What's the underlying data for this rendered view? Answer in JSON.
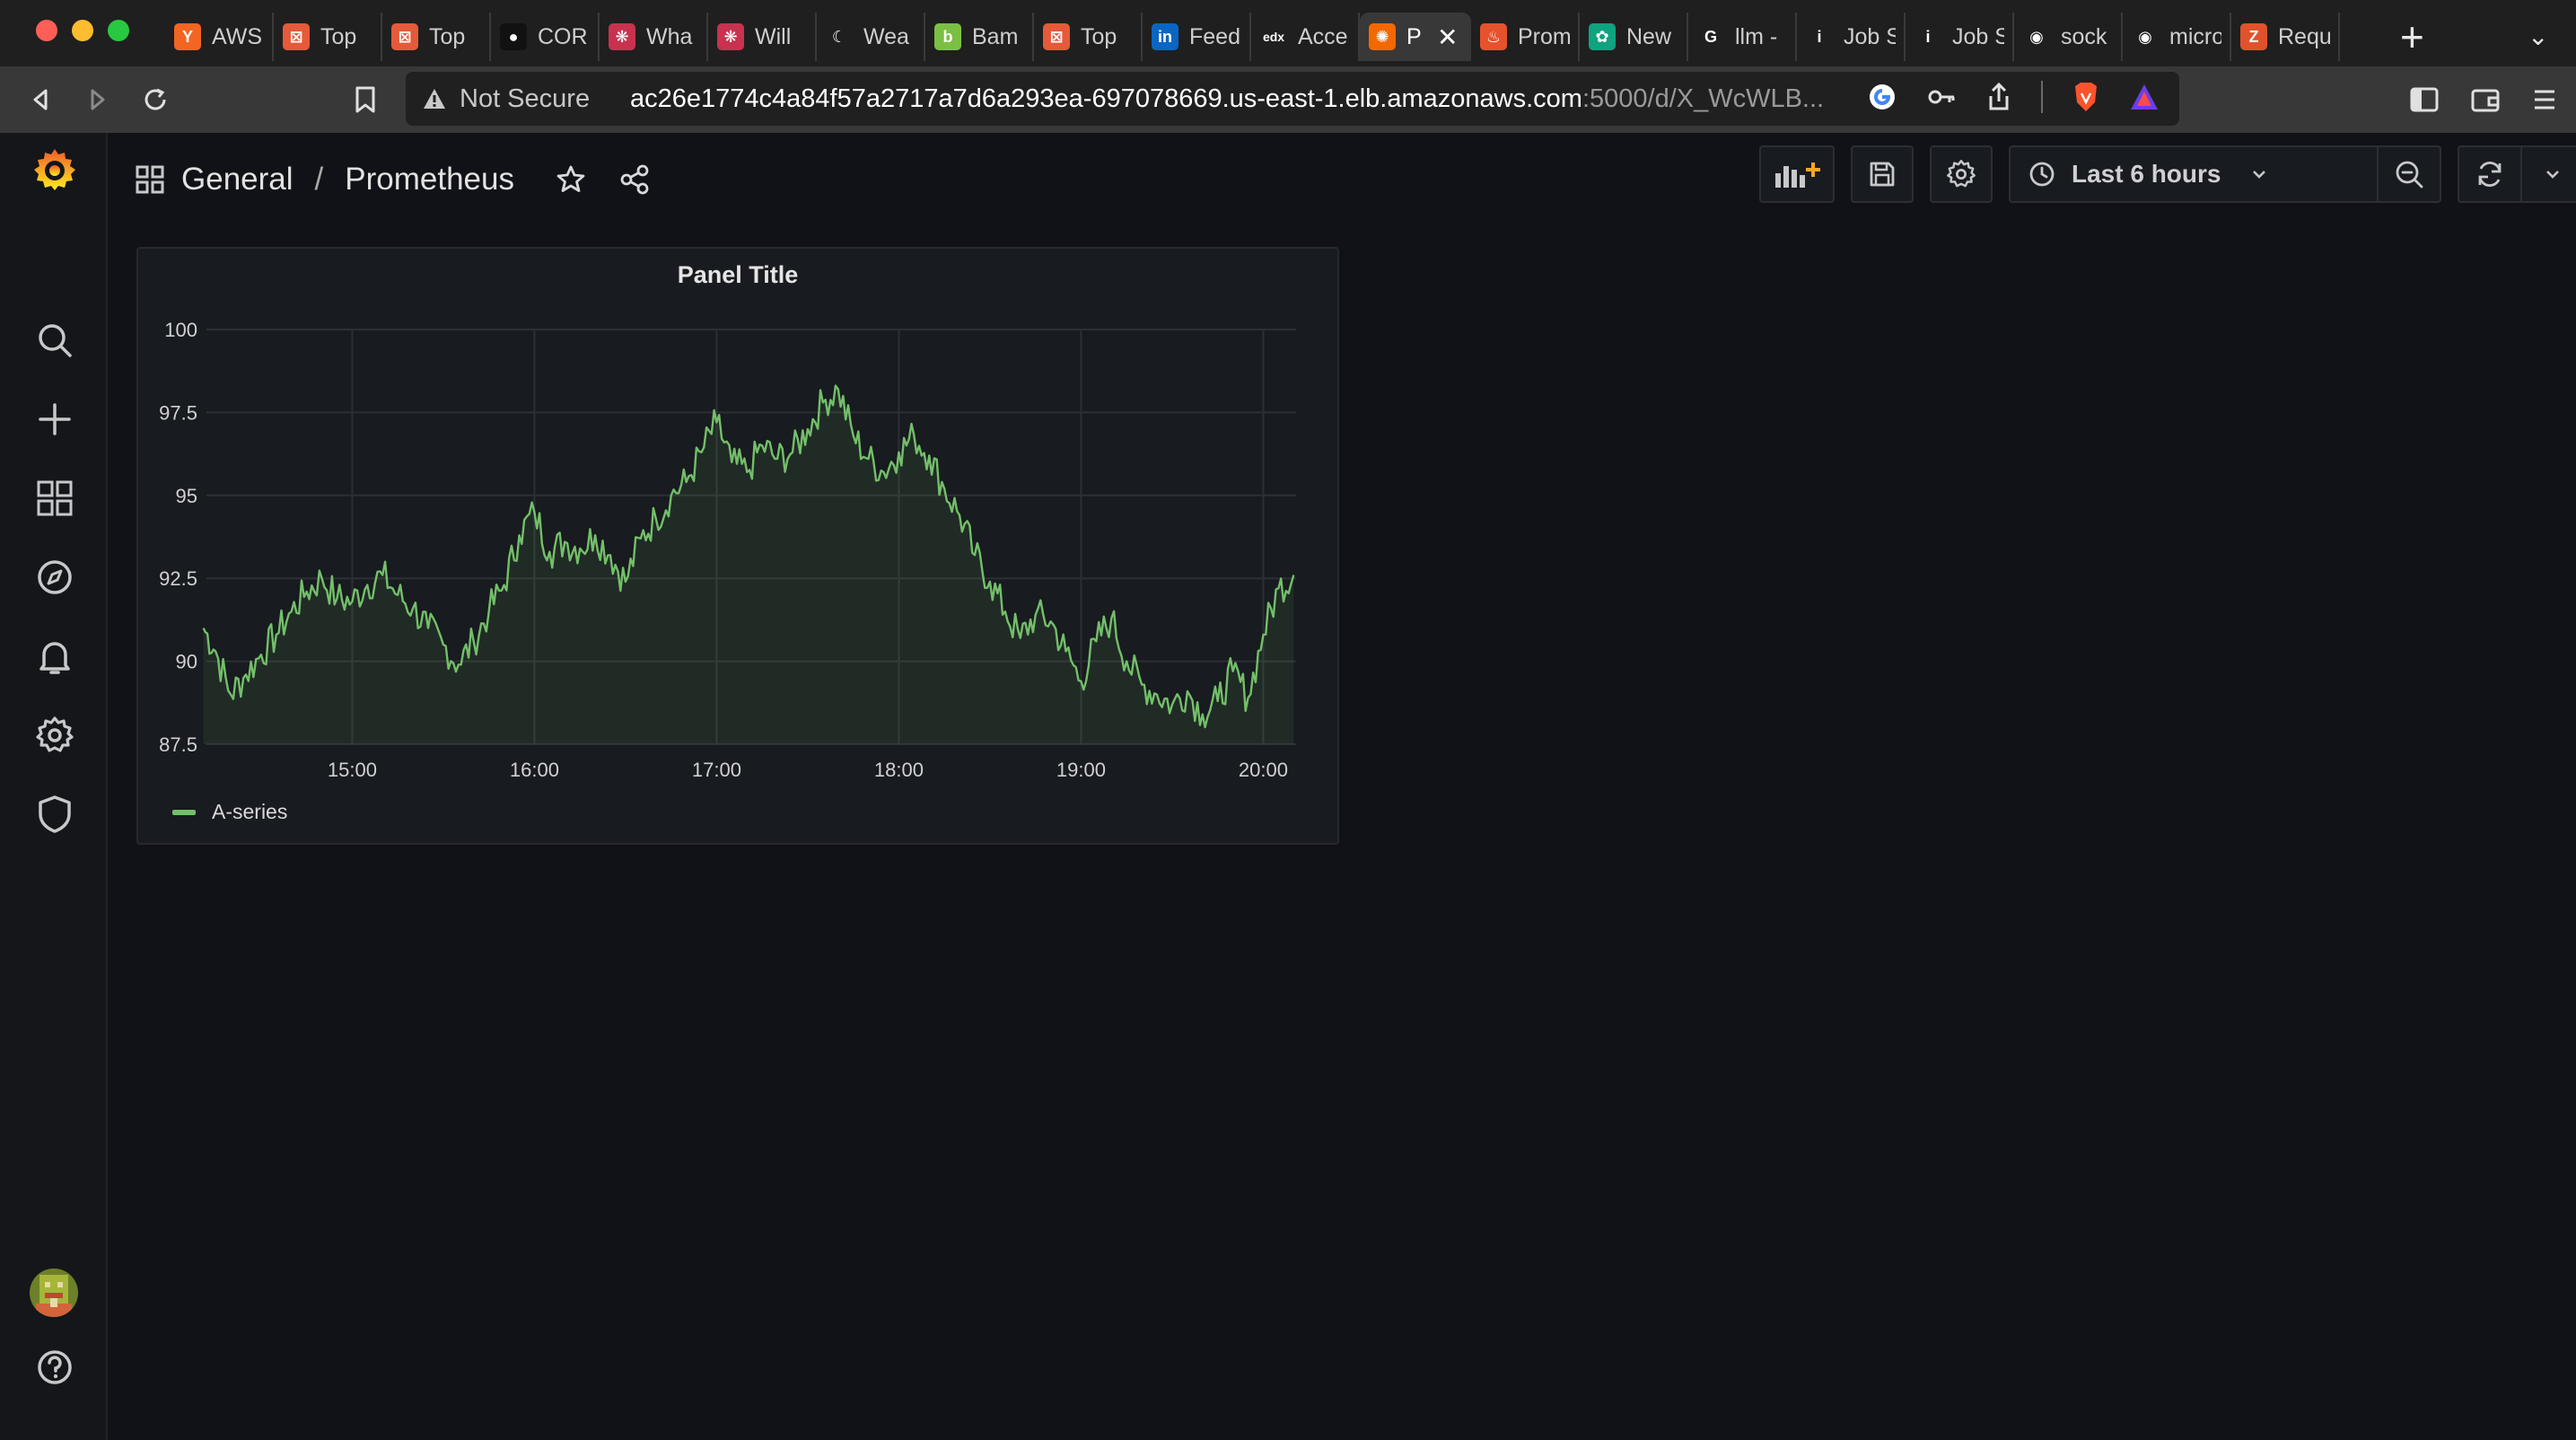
{
  "browser": {
    "tabs": [
      {
        "title": "AWS",
        "icon": "y-combinator-icon",
        "color": "#f26522",
        "glyph": "Y"
      },
      {
        "title": "Top",
        "icon": "lab-icon",
        "color": "#e55a3a",
        "glyph": "⊠"
      },
      {
        "title": "Top",
        "icon": "lab-icon",
        "color": "#e55a3a",
        "glyph": "⊠"
      },
      {
        "title": "COR",
        "icon": "circle-icon",
        "color": "#111111",
        "glyph": "●"
      },
      {
        "title": "Wha",
        "icon": "react-icon",
        "color": "#c8324f",
        "glyph": "❋"
      },
      {
        "title": "Will",
        "icon": "react-icon",
        "color": "#c8324f",
        "glyph": "❋"
      },
      {
        "title": "Wea",
        "icon": "moon-icon",
        "color": "#1f1f1f",
        "glyph": "☾"
      },
      {
        "title": "Bam",
        "icon": "bamboo-icon",
        "color": "#7bc043",
        "glyph": "b"
      },
      {
        "title": "Top",
        "icon": "lab-icon",
        "color": "#e55a3a",
        "glyph": "⊠"
      },
      {
        "title": "Feed",
        "icon": "linkedin-icon",
        "color": "#0a66c2",
        "glyph": "in"
      },
      {
        "title": "Acce",
        "icon": "edx-icon",
        "color": "#1f1f1f",
        "glyph": "edx"
      },
      {
        "title": "P",
        "icon": "grafana-icon",
        "color": "#f46800",
        "glyph": "✺",
        "active": true
      },
      {
        "title": "Prom",
        "icon": "prometheus-icon",
        "color": "#e6522c",
        "glyph": "♨"
      },
      {
        "title": "New",
        "icon": "chatgpt-icon",
        "color": "#10a37f",
        "glyph": "✿"
      },
      {
        "title": "llm -",
        "icon": "google-icon",
        "color": "#ffffff",
        "glyph": "G"
      },
      {
        "title": "Job S",
        "icon": "info-icon",
        "color": "#ffffff",
        "glyph": "i"
      },
      {
        "title": "Job S",
        "icon": "info-icon",
        "color": "#ffffff",
        "glyph": "i"
      },
      {
        "title": "sock",
        "icon": "github-icon",
        "color": "#ffffff",
        "glyph": "◉"
      },
      {
        "title": "micro",
        "icon": "github-icon",
        "color": "#ffffff",
        "glyph": "◉"
      },
      {
        "title": "Requ",
        "icon": "zapier-icon",
        "color": "#e0522c",
        "glyph": "Z"
      }
    ],
    "not_secure_label": "Not Secure",
    "url_host": "ac26e1774c4a84f57a2717a7d6a293ea-697078669.us-east-1.elb.amazonaws.com",
    "url_rest": ":5000/d/X_WcWLB..."
  },
  "breadcrumb": {
    "folder": "General",
    "separator": "/",
    "dashboard": "Prometheus"
  },
  "timepicker": {
    "label": "Last 6 hours"
  },
  "panel": {
    "title": "Panel Title",
    "legend": "A-series",
    "series_color": "#73bf69"
  },
  "chart_data": {
    "type": "line",
    "title": "Panel Title",
    "xlabel": "",
    "ylabel": "",
    "x_ticks": [
      "15:00",
      "16:00",
      "17:00",
      "18:00",
      "19:00",
      "20:00"
    ],
    "y_ticks": [
      87.5,
      90,
      92.5,
      95,
      97.5,
      100
    ],
    "ylim": [
      87.5,
      100
    ],
    "x_range_minutes": [
      14.2,
      20.18
    ],
    "grid": true,
    "legend_placement": "bottom-left",
    "series": [
      {
        "name": "A-series",
        "color": "#73bf69",
        "x": [
          "14:11",
          "14:15",
          "14:20",
          "14:25",
          "14:30",
          "14:35",
          "14:40",
          "14:45",
          "14:50",
          "14:55",
          "15:00",
          "15:05",
          "15:10",
          "15:15",
          "15:20",
          "15:25",
          "15:30",
          "15:35",
          "15:40",
          "15:45",
          "15:50",
          "15:55",
          "16:00",
          "16:05",
          "16:10",
          "16:15",
          "16:20",
          "16:25",
          "16:30",
          "16:35",
          "16:40",
          "16:45",
          "16:50",
          "16:55",
          "17:00",
          "17:05",
          "17:10",
          "17:15",
          "17:20",
          "17:25",
          "17:30",
          "17:35",
          "17:40",
          "17:45",
          "17:50",
          "17:55",
          "18:00",
          "18:05",
          "18:10",
          "18:15",
          "18:20",
          "18:25",
          "18:30",
          "18:35",
          "18:40",
          "18:45",
          "18:50",
          "18:55",
          "19:00",
          "19:05",
          "19:10",
          "19:15",
          "19:20",
          "19:25",
          "19:30",
          "19:35",
          "19:40",
          "19:45",
          "19:50",
          "19:55",
          "20:00",
          "20:05",
          "20:10"
        ],
        "values": [
          91.0,
          90.3,
          89.0,
          89.6,
          90.2,
          90.8,
          91.5,
          92.1,
          92.5,
          91.9,
          91.8,
          92.3,
          92.6,
          92.0,
          91.6,
          91.0,
          90.5,
          89.9,
          90.6,
          91.5,
          92.3,
          93.8,
          94.5,
          93.3,
          93.6,
          93.4,
          93.8,
          93.2,
          92.4,
          93.7,
          94.3,
          95.0,
          95.4,
          96.3,
          97.2,
          96.0,
          95.7,
          96.5,
          96.1,
          96.3,
          97.0,
          97.8,
          98.2,
          96.8,
          96.1,
          95.7,
          96.3,
          96.8,
          96.2,
          95.2,
          94.4,
          93.2,
          92.4,
          91.5,
          90.7,
          91.4,
          91.2,
          90.3,
          89.4,
          90.6,
          91.3,
          90.0,
          89.3,
          89.0,
          88.7,
          89.1,
          88.4,
          88.8,
          89.7,
          88.9,
          90.8,
          92.2,
          92.6
        ]
      }
    ]
  }
}
